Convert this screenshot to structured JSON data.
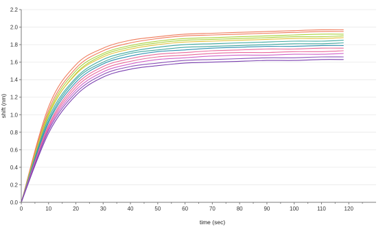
{
  "chart_data": {
    "type": "line",
    "title": "",
    "xlabel": "time (sec)",
    "ylabel": "shift (nm)",
    "xlim": [
      0,
      130
    ],
    "ylim": [
      0,
      2.2
    ],
    "x_ticks": [
      "0",
      "10",
      "20",
      "30",
      "40",
      "50",
      "60",
      "70",
      "80",
      "90",
      "100",
      "110",
      "120"
    ],
    "y_ticks": [
      "0.0",
      "0.2",
      "0.4",
      "0.6",
      "0.8",
      "1.0",
      "1.2",
      "1.4",
      "1.6",
      "1.8",
      "2.0",
      "2.2"
    ],
    "grid": true,
    "legend": "none",
    "x": [
      0,
      10,
      20,
      30,
      40,
      50,
      60,
      70,
      80,
      90,
      100,
      110,
      118
    ],
    "series": [
      {
        "color": "#ef7a5a",
        "values": [
          0.0,
          1.09,
          1.57,
          1.76,
          1.85,
          1.89,
          1.92,
          1.93,
          1.94,
          1.95,
          1.96,
          1.97,
          1.97
        ]
      },
      {
        "color": "#ef7a5a",
        "values": [
          0.0,
          1.05,
          1.53,
          1.73,
          1.82,
          1.87,
          1.9,
          1.91,
          1.92,
          1.93,
          1.94,
          1.95,
          1.95
        ]
      },
      {
        "color": "#aad23c",
        "values": [
          0.0,
          1.02,
          1.5,
          1.7,
          1.79,
          1.84,
          1.87,
          1.88,
          1.89,
          1.9,
          1.91,
          1.92,
          1.92
        ]
      },
      {
        "color": "#aad23c",
        "values": [
          0.0,
          0.99,
          1.47,
          1.68,
          1.77,
          1.82,
          1.85,
          1.86,
          1.87,
          1.88,
          1.89,
          1.89,
          1.9
        ]
      },
      {
        "color": "#e2c23a",
        "values": [
          0.0,
          1.0,
          1.46,
          1.66,
          1.75,
          1.8,
          1.83,
          1.84,
          1.85,
          1.86,
          1.87,
          1.87,
          1.88
        ]
      },
      {
        "color": "#3fa8a0",
        "values": [
          0.0,
          0.96,
          1.42,
          1.63,
          1.72,
          1.77,
          1.8,
          1.81,
          1.82,
          1.83,
          1.84,
          1.84,
          1.85
        ]
      },
      {
        "color": "#3fa8a0",
        "values": [
          0.0,
          0.93,
          1.4,
          1.6,
          1.7,
          1.74,
          1.77,
          1.78,
          1.79,
          1.8,
          1.81,
          1.81,
          1.82
        ]
      },
      {
        "color": "#2c8fb0",
        "values": [
          0.0,
          0.91,
          1.37,
          1.58,
          1.67,
          1.72,
          1.74,
          1.76,
          1.77,
          1.78,
          1.78,
          1.79,
          1.79
        ]
      },
      {
        "color": "#e8679a",
        "values": [
          0.0,
          0.88,
          1.34,
          1.55,
          1.64,
          1.69,
          1.71,
          1.73,
          1.74,
          1.75,
          1.75,
          1.76,
          1.76
        ]
      },
      {
        "color": "#e8679a",
        "values": [
          0.0,
          0.86,
          1.31,
          1.52,
          1.61,
          1.66,
          1.68,
          1.7,
          1.71,
          1.71,
          1.72,
          1.72,
          1.73
        ]
      },
      {
        "color": "#cf5fc8",
        "values": [
          0.0,
          0.84,
          1.28,
          1.49,
          1.58,
          1.63,
          1.65,
          1.67,
          1.68,
          1.68,
          1.69,
          1.69,
          1.7
        ]
      },
      {
        "color": "#8a4fb8",
        "values": [
          0.0,
          0.82,
          1.25,
          1.46,
          1.55,
          1.59,
          1.62,
          1.63,
          1.64,
          1.65,
          1.65,
          1.66,
          1.66
        ]
      },
      {
        "color": "#7a3fb0",
        "values": [
          0.0,
          0.79,
          1.22,
          1.43,
          1.52,
          1.56,
          1.59,
          1.6,
          1.61,
          1.62,
          1.62,
          1.63,
          1.63
        ]
      }
    ]
  }
}
